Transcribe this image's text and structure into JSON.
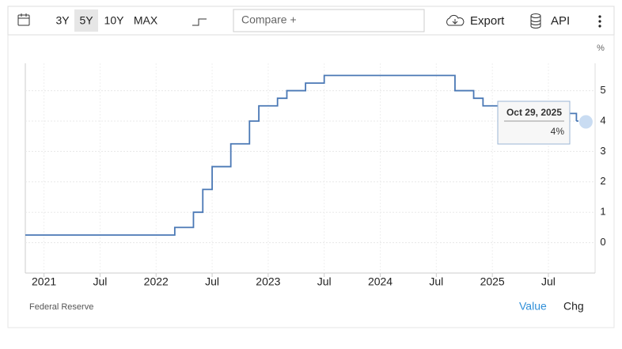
{
  "toolbar": {
    "ranges": [
      "3Y",
      "5Y",
      "10Y",
      "MAX"
    ],
    "selected_range": "5Y",
    "compare": "Compare +",
    "export": "Export",
    "api": "API"
  },
  "chart_data": {
    "type": "step",
    "y_unit": "%",
    "x": [
      "2020-11",
      "2022-03",
      "2022-05",
      "2022-06",
      "2022-07",
      "2022-09",
      "2022-11",
      "2022-12",
      "2023-02",
      "2023-03",
      "2023-05",
      "2023-07",
      "2024-09",
      "2024-11",
      "2024-12",
      "2025-09",
      "2025-10"
    ],
    "values": [
      0.25,
      0.5,
      1,
      1.75,
      2.5,
      3.25,
      4,
      4.5,
      4.75,
      5,
      5.25,
      5.5,
      5,
      4.75,
      4.5,
      4.25,
      4
    ],
    "color": "#4a78b5",
    "xlim": [
      "2020-11",
      "2025-12"
    ],
    "xticks": [
      {
        "value": "2021-01",
        "label": "2021"
      },
      {
        "value": "2021-07",
        "label": "Jul"
      },
      {
        "value": "2022-01",
        "label": "2022"
      },
      {
        "value": "2022-07",
        "label": "Jul"
      },
      {
        "value": "2023-01",
        "label": "2023"
      },
      {
        "value": "2023-07",
        "label": "Jul"
      },
      {
        "value": "2024-01",
        "label": "2024"
      },
      {
        "value": "2024-07",
        "label": "Jul"
      },
      {
        "value": "2025-01",
        "label": "2025"
      },
      {
        "value": "2025-07",
        "label": "Jul"
      }
    ],
    "ylim": [
      -1,
      5.9
    ],
    "yticks": [
      0,
      1,
      2,
      3,
      4,
      5
    ],
    "grid": true,
    "tooltip": {
      "date": "Oct 29, 2025",
      "label": "4%"
    }
  },
  "footer": {
    "source": "Federal Reserve",
    "value": "Value",
    "chg": "Chg"
  }
}
